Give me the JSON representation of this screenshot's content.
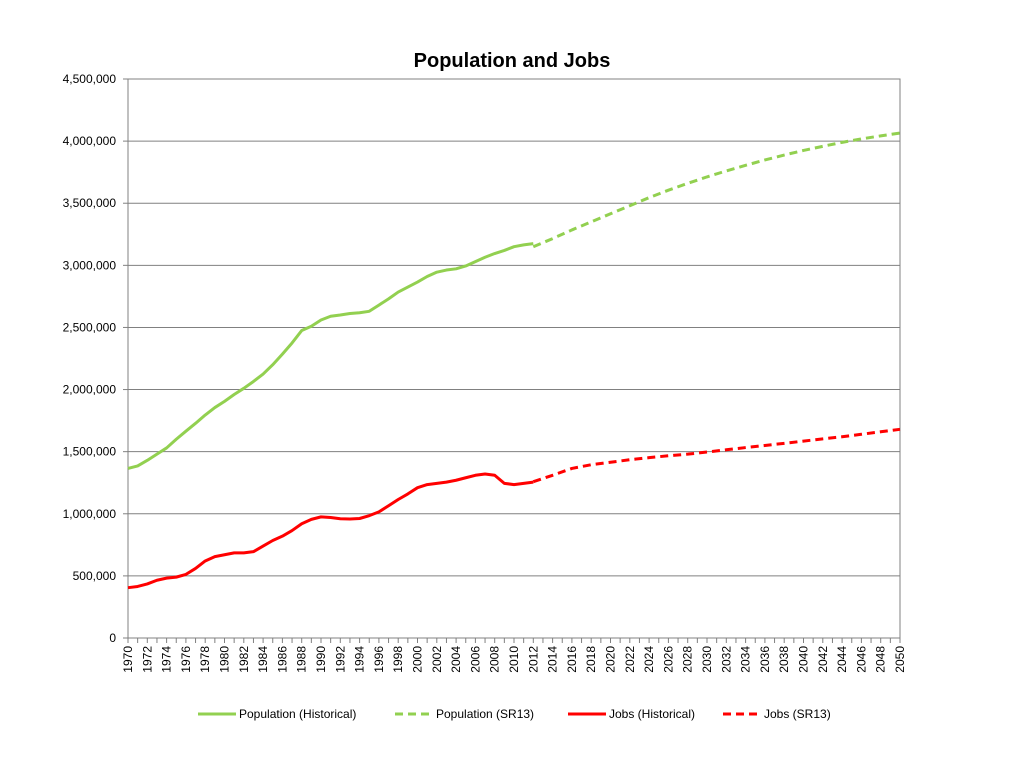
{
  "chart_data": {
    "type": "line",
    "title": "Population and Jobs",
    "xlabel": "",
    "ylabel": "",
    "xlim": [
      1970,
      2050
    ],
    "ylim": [
      0,
      4500000
    ],
    "y_ticks": [
      "0",
      "500,000",
      "1,000,000",
      "1,500,000",
      "2,000,000",
      "2,500,000",
      "3,000,000",
      "3,500,000",
      "4,000,000",
      "4,500,000"
    ],
    "y_tick_values": [
      0,
      500000,
      1000000,
      1500000,
      2000000,
      2500000,
      3000000,
      3500000,
      4000000,
      4500000
    ],
    "x_ticks": [
      "1970",
      "1972",
      "1974",
      "1976",
      "1978",
      "1980",
      "1982",
      "1984",
      "1986",
      "1988",
      "1990",
      "1992",
      "1994",
      "1996",
      "1998",
      "2000",
      "2002",
      "2004",
      "2006",
      "2008",
      "2010",
      "2012",
      "2014",
      "2016",
      "2018",
      "2020",
      "2022",
      "2024",
      "2026",
      "2028",
      "2030",
      "2032",
      "2034",
      "2036",
      "2038",
      "2040",
      "2042",
      "2044",
      "2046",
      "2048",
      "2050"
    ],
    "grid": "horizontal",
    "legend_position": "bottom",
    "series": [
      {
        "name": "Population (Historical)",
        "color": "#92D050",
        "style": "solid",
        "x": [
          1970,
          1971,
          1972,
          1973,
          1974,
          1975,
          1976,
          1977,
          1978,
          1979,
          1980,
          1981,
          1982,
          1983,
          1984,
          1985,
          1986,
          1987,
          1988,
          1989,
          1990,
          1991,
          1992,
          1993,
          1994,
          1995,
          1996,
          1997,
          1998,
          1999,
          2000,
          2001,
          2002,
          2003,
          2004,
          2005,
          2006,
          2007,
          2008,
          2009,
          2010,
          2011,
          2012
        ],
        "values": [
          1365000,
          1385000,
          1430000,
          1480000,
          1530000,
          1600000,
          1665000,
          1728000,
          1795000,
          1855000,
          1905000,
          1960000,
          2010000,
          2065000,
          2125000,
          2200000,
          2285000,
          2375000,
          2475000,
          2510000,
          2560000,
          2590000,
          2600000,
          2612000,
          2618000,
          2630000,
          2680000,
          2730000,
          2785000,
          2825000,
          2865000,
          2910000,
          2945000,
          2962000,
          2972000,
          2995000,
          3030000,
          3065000,
          3095000,
          3120000,
          3150000,
          3165000,
          3175000
        ]
      },
      {
        "name": "Population (SR13)",
        "color": "#92D050",
        "style": "dashed",
        "x": [
          2012,
          2014,
          2016,
          2018,
          2020,
          2022,
          2024,
          2026,
          2028,
          2030,
          2032,
          2034,
          2036,
          2038,
          2040,
          2042,
          2044,
          2046,
          2048,
          2050
        ],
        "values": [
          3150000,
          3215000,
          3285000,
          3350000,
          3415000,
          3480000,
          3545000,
          3605000,
          3660000,
          3712000,
          3760000,
          3805000,
          3848000,
          3888000,
          3925000,
          3958000,
          3990000,
          4018000,
          4042000,
          4065000
        ]
      },
      {
        "name": "Jobs (Historical)",
        "color": "#FF0000",
        "style": "solid",
        "x": [
          1970,
          1971,
          1972,
          1973,
          1974,
          1975,
          1976,
          1977,
          1978,
          1979,
          1980,
          1981,
          1982,
          1983,
          1984,
          1985,
          1986,
          1987,
          1988,
          1989,
          1990,
          1991,
          1992,
          1993,
          1994,
          1995,
          1996,
          1997,
          1998,
          1999,
          2000,
          2001,
          2002,
          2003,
          2004,
          2005,
          2006,
          2007,
          2008,
          2009,
          2010,
          2011,
          2012
        ],
        "values": [
          405000,
          415000,
          435000,
          465000,
          482000,
          490000,
          512000,
          560000,
          620000,
          655000,
          670000,
          685000,
          685000,
          695000,
          740000,
          785000,
          820000,
          865000,
          920000,
          955000,
          975000,
          970000,
          960000,
          958000,
          962000,
          985000,
          1015000,
          1065000,
          1115000,
          1160000,
          1210000,
          1235000,
          1245000,
          1255000,
          1270000,
          1290000,
          1310000,
          1320000,
          1310000,
          1245000,
          1235000,
          1245000,
          1255000
        ]
      },
      {
        "name": "Jobs (SR13)",
        "color": "#FF0000",
        "style": "dashed",
        "x": [
          2012,
          2014,
          2016,
          2018,
          2020,
          2022,
          2024,
          2026,
          2028,
          2030,
          2032,
          2034,
          2036,
          2038,
          2040,
          2042,
          2044,
          2046,
          2048,
          2050
        ],
        "values": [
          1258000,
          1310000,
          1365000,
          1395000,
          1415000,
          1435000,
          1452000,
          1467000,
          1480000,
          1497000,
          1515000,
          1533000,
          1550000,
          1567000,
          1585000,
          1603000,
          1620000,
          1640000,
          1660000,
          1680000
        ]
      }
    ]
  }
}
